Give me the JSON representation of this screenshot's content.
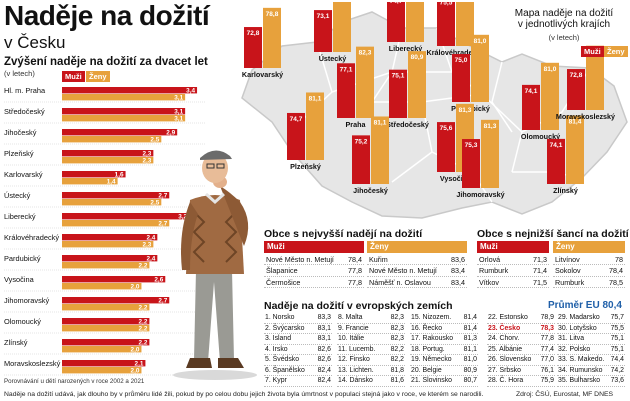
{
  "header": {
    "title": "Naděje na dožití",
    "subtitle": "v Česku"
  },
  "bars": {
    "title": "Zvýšení naděje na dožití za dvacet let",
    "unit": "(v letech)",
    "legend_men": "Muži",
    "legend_women": "Ženy",
    "note": "Porovnávání u dětí narozených v roce 2002 a 2021"
  },
  "chart_data": [
    {
      "type": "bar",
      "title": "Zvýšení naděje na dožití za dvacet let",
      "ylabel": "(v letech)",
      "categories": [
        "Hl. m. Praha",
        "Středočeský",
        "Jihočeský",
        "Plzeňský",
        "Karlovarský",
        "Ústecký",
        "Liberecký",
        "Královéhradecký",
        "Pardubický",
        "Vysočina",
        "Jihomoravský",
        "Olomoucký",
        "Zlínský",
        "Moravskoslezský"
      ],
      "series": [
        {
          "name": "Muži",
          "values": [
            3.4,
            3.1,
            2.9,
            2.3,
            1.6,
            2.7,
            3.2,
            2.4,
            2.4,
            2.6,
            2.7,
            2.2,
            2.2,
            2.1
          ]
        },
        {
          "name": "Ženy",
          "values": [
            3.1,
            3.1,
            2.5,
            2.3,
            1.4,
            2.5,
            2.7,
            2.3,
            2.2,
            2.0,
            2.2,
            2.2,
            2.0,
            2.0
          ]
        }
      ],
      "xlim": [
        0,
        3.6
      ]
    },
    {
      "type": "bar",
      "title": "Mapa naděje na dožití v jednotlivých krajích",
      "ylabel": "(v letech)",
      "categories": [
        "Karlovarský",
        "Ústecký",
        "Liberecký",
        "Královéhradecký",
        "Praha",
        "Středočeský",
        "Pardubický",
        "Plzeňský",
        "Vysočina",
        "Jihočeský",
        "Jihomoravský",
        "Olomoucký",
        "Zlínský",
        "Moravskoslezský"
      ],
      "series": [
        {
          "name": "Muži",
          "values": [
            72.8,
            73.1,
            74.7,
            75.5,
            77.1,
            75.1,
            75.0,
            74.7,
            75.6,
            75.2,
            75.3,
            74.1,
            74.1,
            72.8
          ]
        },
        {
          "name": "Ženy",
          "values": [
            78.8,
            79.0,
            80.7,
            81.5,
            82.3,
            80.9,
            81.0,
            81.1,
            81.3,
            81.1,
            81.3,
            81.0,
            81.4,
            80.1
          ]
        }
      ]
    }
  ],
  "map": {
    "title_line1": "Mapa naděje na dožití",
    "title_line2": "v jednotlivých krajích",
    "unit": "(v letech)",
    "legend_men": "Muži",
    "legend_women": "Ženy"
  },
  "highest": {
    "title": "Obce s nejvyšší nadějí na dožití",
    "men_label": "Muži",
    "women_label": "Ženy",
    "men": [
      {
        "name": "Nové Město n. Metují",
        "value": "78,4"
      },
      {
        "name": "Šlapanice",
        "value": "77,8"
      },
      {
        "name": "Čermošice",
        "value": "77,8"
      }
    ],
    "women": [
      {
        "name": "Kuřim",
        "value": "83,6"
      },
      {
        "name": "Nové Město n. Metují",
        "value": "83,4"
      },
      {
        "name": "Náměšť n. Oslavou",
        "value": "83,4"
      }
    ]
  },
  "lowest": {
    "title": "Obce s nejnižší šancí na dožití",
    "men_label": "Muži",
    "women_label": "Ženy",
    "men": [
      {
        "name": "Orlová",
        "value": "71,3"
      },
      {
        "name": "Rumburk",
        "value": "71,4"
      },
      {
        "name": "Vítkov",
        "value": "71,5"
      }
    ],
    "women": [
      {
        "name": "Litvínov",
        "value": "78"
      },
      {
        "name": "Sokolov",
        "value": "78,4"
      },
      {
        "name": "Rumburk",
        "value": "78,5"
      }
    ]
  },
  "eu": {
    "title": "Naděje na dožití v evropských zemích",
    "average": "Průměr EU 80,4",
    "columns": [
      [
        {
          "name": "1. Norsko",
          "value": "83,3"
        },
        {
          "name": "2. Švýcarsko",
          "value": "83,1"
        },
        {
          "name": "3. Island",
          "value": "83,1"
        },
        {
          "name": "4. Irsko",
          "value": "82,6"
        },
        {
          "name": "5. Švédsko",
          "value": "82,6"
        },
        {
          "name": "6. Španělsko",
          "value": "82,4"
        },
        {
          "name": "7. Kypr",
          "value": "82,4"
        }
      ],
      [
        {
          "name": "8. Malta",
          "value": "82,3"
        },
        {
          "name": "9. Francie",
          "value": "82,3"
        },
        {
          "name": "10. Itálie",
          "value": "82,3"
        },
        {
          "name": "11. Lucemb.",
          "value": "82,2"
        },
        {
          "name": "12. Finsko",
          "value": "82,2"
        },
        {
          "name": "13. Lichten.",
          "value": "81,8"
        },
        {
          "name": "14. Dánsko",
          "value": "81,6"
        }
      ],
      [
        {
          "name": "15. Nizozem.",
          "value": "81,4"
        },
        {
          "name": "16. Řecko",
          "value": "81,4"
        },
        {
          "name": "17. Rakousko",
          "value": "81,3"
        },
        {
          "name": "18. Portug.",
          "value": "81,1"
        },
        {
          "name": "19. Německo",
          "value": "81,0"
        },
        {
          "name": "20. Belgie",
          "value": "80,9"
        },
        {
          "name": "21. Slovinsko",
          "value": "80,7"
        }
      ],
      [
        {
          "name": "22. Estonsko",
          "value": "78,9"
        },
        {
          "name": "23. Česko",
          "value": "78,3"
        },
        {
          "name": "24. Chorv.",
          "value": "77,8"
        },
        {
          "name": "25. Albánie",
          "value": "77,4"
        },
        {
          "name": "26. Slovensko",
          "value": "77,0"
        },
        {
          "name": "27. Srbsko",
          "value": "76,1"
        },
        {
          "name": "28. Č. Hora",
          "value": "75,9"
        }
      ],
      [
        {
          "name": "29. Madarsko",
          "value": "75,7"
        },
        {
          "name": "30. Lotyšsko",
          "value": "75,5"
        },
        {
          "name": "31. Litva",
          "value": "75,1"
        },
        {
          "name": "32. Polsko",
          "value": "75,1"
        },
        {
          "name": "33. S. Makedo.",
          "value": "74,4"
        },
        {
          "name": "34. Rumunsko",
          "value": "74,2"
        },
        {
          "name": "35. Bulharsko",
          "value": "73,6"
        }
      ]
    ]
  },
  "footer": {
    "note": "Naděje na dožití udává, jak dlouho by v průměru lidé žili, pokud by po celou dobu jejich života byla úmrtnost v populaci stejná jako v roce, ve kterém se narodili.",
    "source": "Zdroj: ČSÚ, Eurostat, MF DNES"
  },
  "colors": {
    "men": "#c8141a",
    "women": "#e7a13c",
    "map_fill": "#e6e6e6",
    "eu_avg": "#1f5fa8"
  }
}
